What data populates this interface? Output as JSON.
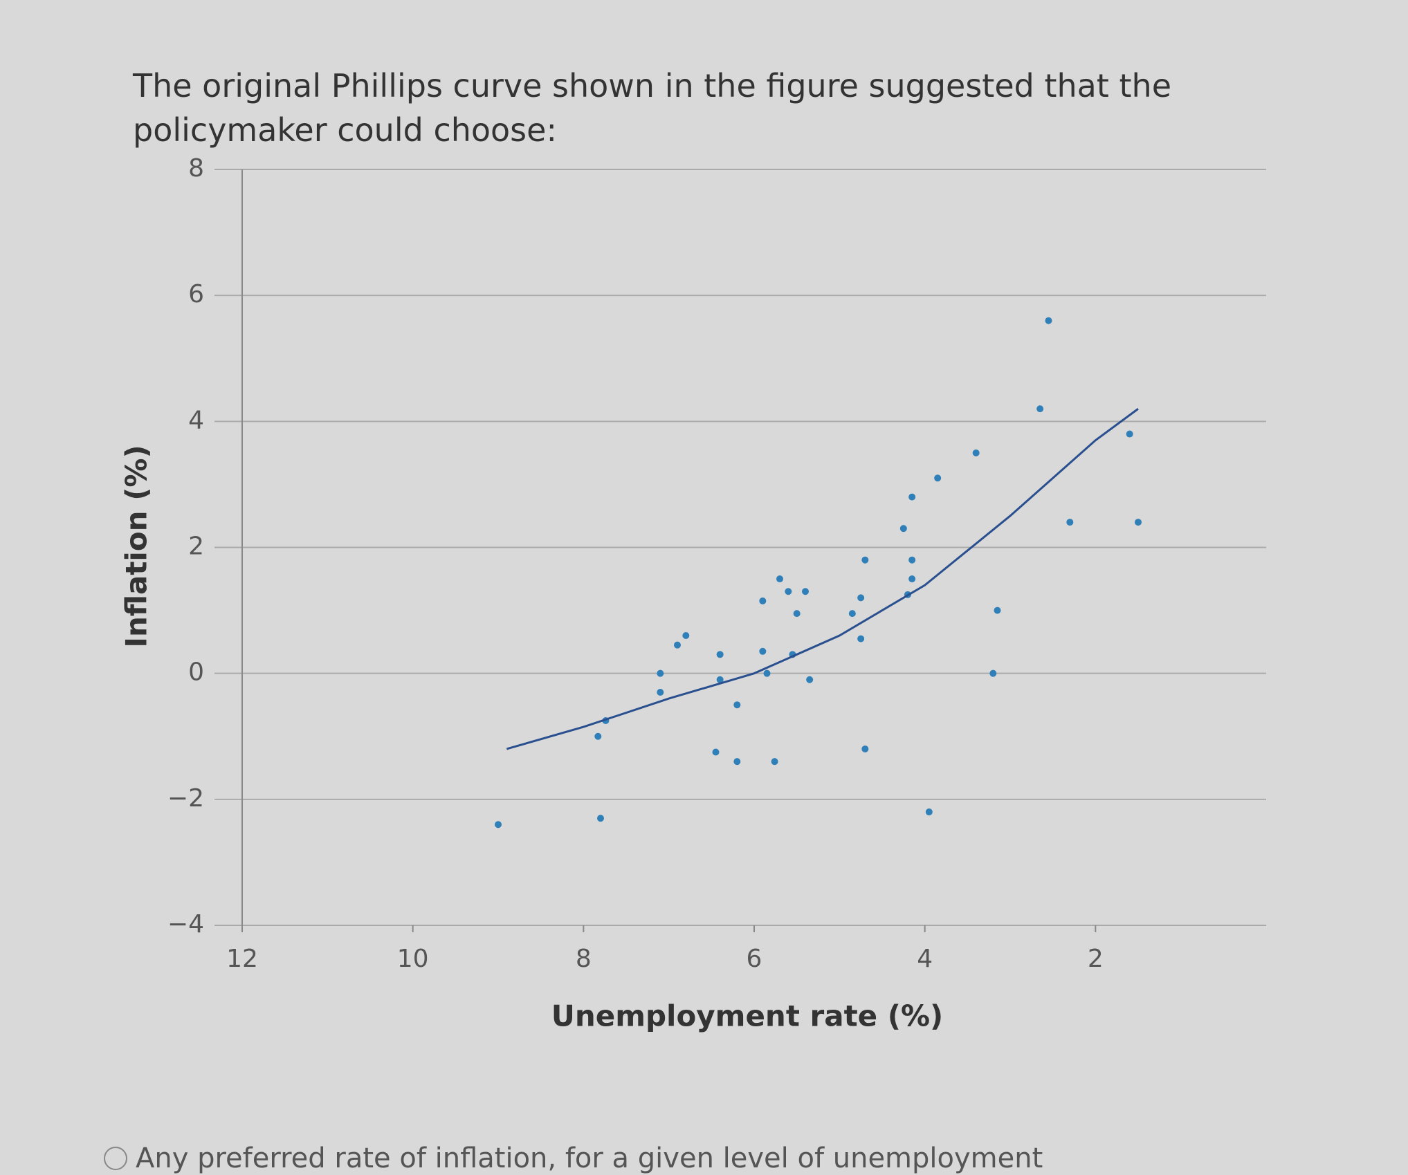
{
  "question": {
    "text": "The original Phillips curve shown in the figure suggested that the policymaker could choose:"
  },
  "chart_data": {
    "type": "scatter",
    "xlabel": "Unemployment rate (%)",
    "ylabel": "Inflation (%)",
    "xlim": [
      12,
      0
    ],
    "xticks": [
      12,
      10,
      8,
      6,
      4,
      2
    ],
    "ylim": [
      -4,
      8
    ],
    "yticks": [
      {
        "value": -4,
        "label": "−4"
      },
      {
        "value": -2,
        "label": "−2"
      },
      0,
      2,
      4,
      6,
      8
    ],
    "grid": true,
    "series": [
      {
        "type": "scatter",
        "color": "#2f7fb8",
        "x": [
          9.0,
          7.8,
          7.83,
          7.74,
          7.1,
          7.1,
          6.9,
          6.8,
          6.45,
          6.2,
          5.76,
          6.2,
          6.4,
          5.9,
          5.85,
          6.4,
          5.9,
          5.7,
          5.6,
          5.4,
          5.5,
          5.55,
          5.35,
          4.85,
          4.75,
          4.75,
          4.7,
          4.7,
          4.2,
          4.15,
          4.15,
          4.25,
          4.15,
          3.85,
          3.95,
          3.4,
          3.2,
          3.15,
          2.65,
          2.55,
          2.3,
          1.6,
          1.5
        ],
        "values": [
          -2.4,
          -2.3,
          -1.0,
          -0.75,
          0.0,
          -0.3,
          0.45,
          0.6,
          -1.25,
          -1.4,
          -1.4,
          -0.5,
          0.3,
          0.35,
          0.0,
          -0.1,
          1.15,
          1.5,
          1.3,
          1.3,
          0.95,
          0.3,
          -0.1,
          0.95,
          0.55,
          1.2,
          1.8,
          -1.2,
          1.25,
          1.5,
          1.8,
          2.3,
          2.8,
          3.1,
          -2.2,
          3.5,
          0.0,
          1.0,
          4.2,
          5.6,
          2.4,
          3.8,
          2.4
        ]
      },
      {
        "type": "line",
        "color": "#2a4f8f",
        "x": [
          8.9,
          8,
          7,
          6,
          5,
          4,
          3,
          2,
          1.5
        ],
        "values": [
          -1.2,
          -0.85,
          -0.4,
          0.0,
          0.6,
          1.4,
          2.5,
          3.7,
          4.2
        ]
      }
    ]
  },
  "options": [
    "Any preferred rate of inflation, for a given level of unemployment"
  ]
}
